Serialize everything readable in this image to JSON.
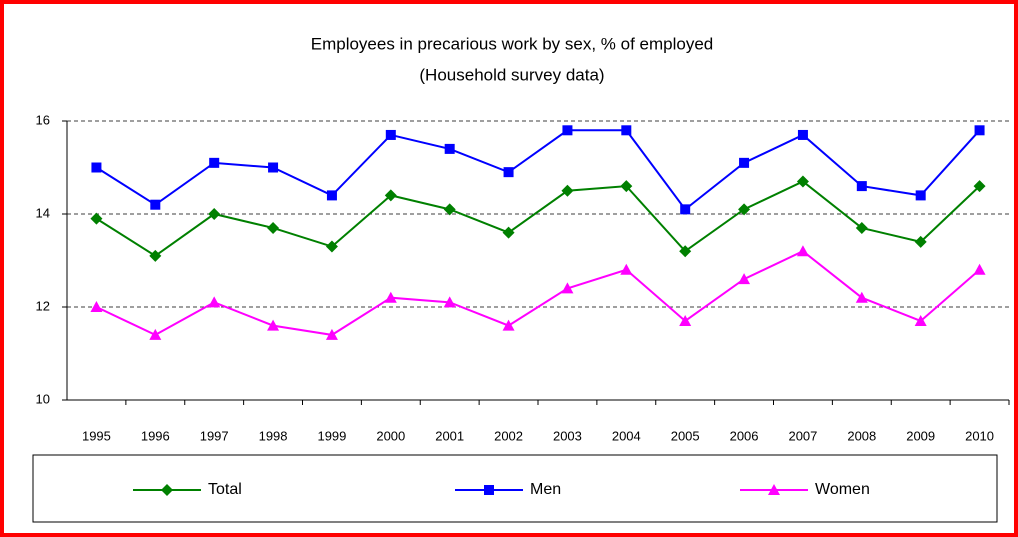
{
  "chart_data": {
    "type": "line",
    "title": "Employees in precarious work by sex, % of employed",
    "subtitle": "(Household survey data)",
    "categories": [
      "1995",
      "1996",
      "1997",
      "1998",
      "1999",
      "2000",
      "2001",
      "2002",
      "2003",
      "2004",
      "2005",
      "2006",
      "2007",
      "2008",
      "2009",
      "2010"
    ],
    "series": [
      {
        "name": "Total",
        "color": "#008000",
        "marker": "diamond",
        "values": [
          13.9,
          13.1,
          14.0,
          13.7,
          13.3,
          14.4,
          14.1,
          13.6,
          14.5,
          14.6,
          13.2,
          14.1,
          14.7,
          13.7,
          13.4,
          14.6
        ]
      },
      {
        "name": "Men",
        "color": "#0000ff",
        "marker": "square",
        "values": [
          15.0,
          14.2,
          15.1,
          15.0,
          14.4,
          15.7,
          15.4,
          14.9,
          15.8,
          15.8,
          14.1,
          15.1,
          15.7,
          14.6,
          14.4,
          15.8
        ]
      },
      {
        "name": "Women",
        "color": "#ff00ff",
        "marker": "triangle",
        "values": [
          12.0,
          11.4,
          12.1,
          11.6,
          11.4,
          12.2,
          12.1,
          11.6,
          12.4,
          12.8,
          11.7,
          12.6,
          13.2,
          12.2,
          11.7,
          12.8
        ]
      }
    ],
    "ylim": [
      10,
      16
    ],
    "yticks": [
      10,
      12,
      14,
      16
    ],
    "grid": true,
    "legend": "bottom"
  }
}
